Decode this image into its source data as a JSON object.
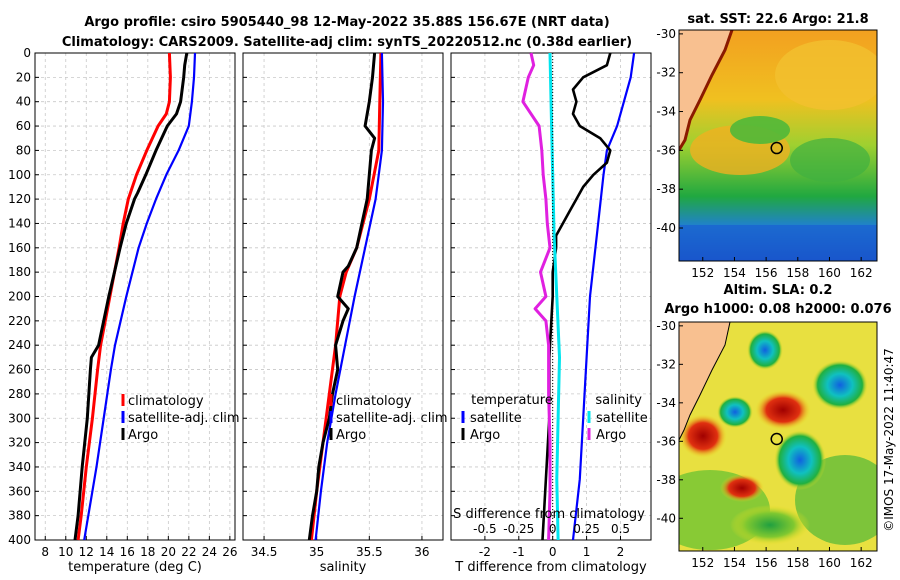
{
  "header": {
    "title_line1": "Argo profile: csiro 5905440_98 12-May-2022 35.88S 156.67E (NRT data)",
    "title_line2": "Climatology: CARS2009. Satellite-adj clim: synTS_20220512.nc (0.38d earlier)"
  },
  "credit": "©IMOS 17-May-2022 11:40:47",
  "colors": {
    "climatology": "#ff0000",
    "satellite": "#0000ff",
    "argo": "#000000",
    "diff_sat_salinity": "#00e5ee",
    "diff_argo_salinity": "#e020e0"
  },
  "chart_data": [
    {
      "id": "temperature",
      "type": "line",
      "xlabel": "temperature (deg C)",
      "ylabel": "",
      "xlim": [
        7,
        26.5
      ],
      "ylim": [
        400,
        0
      ],
      "xticks": [
        "8",
        "10",
        "12",
        "14",
        "16",
        "18",
        "20",
        "22",
        "24",
        "26"
      ],
      "xtick_values": [
        8,
        10,
        12,
        14,
        16,
        18,
        20,
        22,
        24,
        26
      ],
      "yticks": [
        "0",
        "20",
        "40",
        "60",
        "80",
        "100",
        "120",
        "140",
        "160",
        "180",
        "200",
        "220",
        "240",
        "260",
        "280",
        "300",
        "320",
        "340",
        "360",
        "380",
        "400"
      ],
      "legend": [
        "climatology",
        "satellite-adj. clim",
        "Argo"
      ],
      "series": [
        {
          "name": "climatology",
          "depth": [
            0,
            20,
            40,
            50,
            60,
            80,
            100,
            120,
            140,
            160,
            200,
            240,
            260,
            300,
            340,
            380,
            400
          ],
          "values": [
            20.1,
            20.2,
            20.1,
            19.8,
            19.0,
            17.9,
            16.9,
            16.1,
            15.6,
            15.2,
            14.3,
            13.4,
            13.1,
            12.6,
            12.0,
            11.5,
            11.2
          ]
        },
        {
          "name": "satellite-adj. clim",
          "depth": [
            0,
            20,
            40,
            60,
            80,
            100,
            120,
            140,
            160,
            200,
            240,
            260,
            300,
            340,
            380,
            400
          ],
          "values": [
            22.6,
            22.5,
            22.3,
            22.0,
            21.0,
            19.8,
            18.8,
            17.9,
            17.1,
            15.9,
            14.8,
            14.4,
            13.7,
            13.0,
            12.2,
            11.8
          ]
        },
        {
          "name": "Argo",
          "depth": [
            0,
            10,
            20,
            40,
            50,
            60,
            80,
            100,
            115,
            120,
            140,
            160,
            200,
            240,
            250,
            260,
            300,
            340,
            380,
            400
          ],
          "values": [
            21.8,
            21.6,
            21.5,
            21.2,
            20.8,
            19.9,
            18.8,
            17.8,
            17.0,
            16.7,
            15.9,
            15.3,
            14.2,
            13.2,
            12.5,
            12.4,
            12.1,
            11.6,
            11.2,
            10.9
          ]
        }
      ]
    },
    {
      "id": "salinity",
      "type": "line",
      "xlabel": "salinity",
      "ylabel": "",
      "xlim": [
        34.3,
        36.2
      ],
      "ylim": [
        400,
        0
      ],
      "xticks": [
        "34.5",
        "35",
        "35.5",
        "36"
      ],
      "xtick_values": [
        34.5,
        35,
        35.5,
        36
      ],
      "legend": [
        "climatology",
        "satellite-adj. clim",
        "Argo"
      ],
      "series": [
        {
          "name": "climatology",
          "depth": [
            0,
            40,
            80,
            120,
            160,
            180,
            200,
            240,
            280,
            320,
            360,
            400
          ],
          "values": [
            35.61,
            35.6,
            35.59,
            35.5,
            35.38,
            35.28,
            35.22,
            35.18,
            35.12,
            35.06,
            35.0,
            34.95
          ]
        },
        {
          "name": "satellite-adj. clim",
          "depth": [
            0,
            40,
            80,
            120,
            160,
            200,
            240,
            280,
            320,
            360,
            400
          ],
          "values": [
            35.62,
            35.63,
            35.62,
            35.56,
            35.46,
            35.36,
            35.27,
            35.18,
            35.1,
            35.04,
            34.99
          ]
        },
        {
          "name": "Argo",
          "depth": [
            0,
            20,
            40,
            60,
            70,
            80,
            100,
            120,
            140,
            160,
            175,
            180,
            200,
            210,
            220,
            240,
            260,
            280,
            300,
            320,
            340,
            360,
            380,
            400
          ],
          "values": [
            35.55,
            35.53,
            35.5,
            35.46,
            35.55,
            35.52,
            35.5,
            35.48,
            35.43,
            35.38,
            35.3,
            35.25,
            35.2,
            35.3,
            35.25,
            35.18,
            35.2,
            35.15,
            35.12,
            35.06,
            35.02,
            35.0,
            34.96,
            34.93
          ]
        }
      ]
    },
    {
      "id": "difference",
      "type": "line",
      "xlabel": "T difference from climatology",
      "secondary_xlabel": "S difference from climatology",
      "xlim": [
        -3,
        2.9
      ],
      "ylim": [
        400,
        0
      ],
      "xticks": [
        "-2",
        "-1",
        "0",
        "1",
        "2"
      ],
      "xtick_values": [
        -2,
        -1,
        0,
        1,
        2
      ],
      "s_xticks": [
        "-0.5",
        "-0.25",
        "0",
        "0.25",
        "0.5"
      ],
      "legend_temperature_title": "temperature",
      "legend_salinity_title": "salinity",
      "legend_temperature": [
        "satellite",
        "Argo"
      ],
      "legend_salinity": [
        "satellite",
        "Argo"
      ],
      "series": [
        {
          "name": "temperature satellite",
          "depth": [
            0,
            20,
            40,
            60,
            80,
            100,
            150,
            200,
            250,
            300,
            350,
            400
          ],
          "values": [
            2.4,
            2.3,
            2.1,
            1.9,
            1.6,
            1.5,
            1.3,
            1.1,
            1.0,
            0.9,
            0.8,
            0.6
          ]
        },
        {
          "name": "temperature Argo",
          "depth": [
            0,
            10,
            20,
            30,
            40,
            50,
            60,
            70,
            80,
            90,
            100,
            110,
            120,
            130,
            140,
            150,
            160,
            180,
            200,
            250,
            300,
            350,
            400
          ],
          "values": [
            1.7,
            1.6,
            0.9,
            0.6,
            0.7,
            0.6,
            0.8,
            1.4,
            1.7,
            1.6,
            1.2,
            0.9,
            0.7,
            0.5,
            0.3,
            0.1,
            0.1,
            0.0,
            0.0,
            -0.1,
            -0.1,
            -0.2,
            -0.3
          ]
        },
        {
          "name": "salinity satellite",
          "depth": [
            0,
            50,
            100,
            150,
            200,
            250,
            300,
            350,
            400
          ],
          "values": [
            -0.02,
            -0.01,
            0.0,
            0.01,
            0.03,
            0.05,
            0.04,
            0.03,
            0.04
          ]
        },
        {
          "name": "salinity Argo",
          "depth": [
            0,
            10,
            20,
            40,
            60,
            80,
            100,
            120,
            140,
            160,
            180,
            200,
            210,
            220,
            240,
            280,
            320,
            360,
            400
          ],
          "values": [
            -0.16,
            -0.14,
            -0.18,
            -0.22,
            -0.1,
            -0.08,
            -0.07,
            -0.05,
            -0.04,
            -0.02,
            -0.09,
            -0.05,
            -0.13,
            -0.05,
            -0.03,
            -0.03,
            -0.02,
            -0.02,
            -0.03
          ]
        }
      ]
    }
  ],
  "maps": [
    {
      "id": "sst",
      "title": "sat. SST: 22.6 Argo: 21.8",
      "xticks": [
        "152",
        "154",
        "156",
        "158",
        "160",
        "162"
      ],
      "yticks": [
        "-30",
        "-32",
        "-34",
        "-36",
        "-38",
        "-40"
      ],
      "xlim": [
        150.5,
        163
      ],
      "ylim": [
        -41.7,
        -29.8
      ],
      "marker": {
        "lon": 156.67,
        "lat": -35.88
      }
    },
    {
      "id": "sla",
      "title_line1": "Altim. SLA: 0.2",
      "title_line2": "Argo h1000: 0.08 h2000: 0.076",
      "xticks": [
        "152",
        "154",
        "156",
        "158",
        "160",
        "162"
      ],
      "yticks": [
        "-30",
        "-32",
        "-34",
        "-36",
        "-38",
        "-40"
      ],
      "xlim": [
        150.5,
        163
      ],
      "ylim": [
        -41.7,
        -29.8
      ],
      "marker": {
        "lon": 156.67,
        "lat": -35.88
      }
    }
  ]
}
